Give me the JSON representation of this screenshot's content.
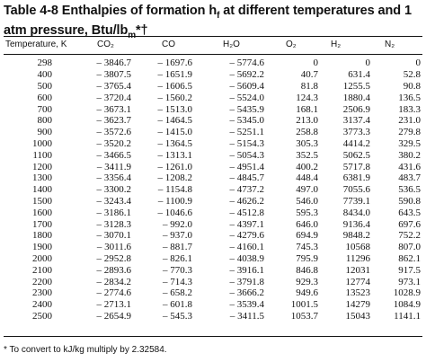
{
  "title_line1": "Table 4-8 Enthalpies of formation h",
  "title_sub": "f",
  "title_line1_rest": " at different temperatures and 1",
  "title_line2": "atm pressure, Btu/lb",
  "title_line2_sub": "m",
  "title_line2_rest": "*†",
  "columns": [
    "Temperature, K",
    "CO₂",
    "CO",
    "H₂O",
    "O₂",
    "H₂",
    "N₂"
  ],
  "rows": [
    [
      "298",
      "– 3846.7",
      "– 1697.6",
      "– 5774.6",
      "0",
      "0",
      "0"
    ],
    [
      "400",
      "– 3807.5",
      "– 1651.9",
      "– 5692.2",
      "40.7",
      "631.4",
      "52.8"
    ],
    [
      "500",
      "– 3765.4",
      "– 1606.5",
      "– 5609.4",
      "81.8",
      "1255.5",
      "90.8"
    ],
    [
      "600",
      "– 3720.4",
      "– 1560.2",
      "– 5524.0",
      "124.3",
      "1880.4",
      "136.5"
    ],
    [
      "700",
      "– 3673.1",
      "– 1513.0",
      "– 5435.9",
      "168.1",
      "2506.9",
      "183.3"
    ],
    [
      "800",
      "– 3623.7",
      "– 1464.5",
      "– 5345.0",
      "213.0",
      "3137.4",
      "231.0"
    ],
    [
      "900",
      "– 3572.6",
      "– 1415.0",
      "– 5251.1",
      "258.8",
      "3773.3",
      "279.8"
    ],
    [
      "1000",
      "– 3520.2",
      "– 1364.5",
      "– 5154.3",
      "305.3",
      "4414.2",
      "329.5"
    ],
    [
      "1100",
      "– 3466.5",
      "– 1313.1",
      "– 5054.3",
      "352.5",
      "5062.5",
      "380.2"
    ],
    [
      "1200",
      "– 3411.9",
      "– 1261.0",
      "– 4951.4",
      "400.2",
      "5717.8",
      "431.6"
    ],
    [
      "1300",
      "– 3356.4",
      "– 1208.2",
      "– 4845.7",
      "448.4",
      "6381.9",
      "483.7"
    ],
    [
      "1400",
      "– 3300.2",
      "– 1154.8",
      "– 4737.2",
      "497.0",
      "7055.6",
      "536.5"
    ],
    [
      "1500",
      "– 3243.4",
      "– 1100.9",
      "– 4626.2",
      "546.0",
      "7739.1",
      "590.8"
    ],
    [
      "1600",
      "– 3186.1",
      "– 1046.6",
      "– 4512.8",
      "595.3",
      "8434.0",
      "643.5"
    ],
    [
      "1700",
      "– 3128.3",
      "– 992.0",
      "– 4397.1",
      "646.0",
      "9136.4",
      "697.6"
    ],
    [
      "1800",
      "– 3070.1",
      "– 937.0",
      "– 4279.6",
      "694.9",
      "9848.2",
      "752.2"
    ],
    [
      "1900",
      "– 3011.6",
      "– 881.7",
      "– 4160.1",
      "745.3",
      "10568",
      "807.0"
    ],
    [
      "2000",
      "– 2952.8",
      "– 826.1",
      "– 4038.9",
      "795.9",
      "11296",
      "862.1"
    ],
    [
      "2100",
      "– 2893.6",
      "– 770.3",
      "– 3916.1",
      "846.8",
      "12031",
      "917.5"
    ],
    [
      "2200",
      "– 2834.2",
      "– 714.3",
      "– 3791.8",
      "929.3",
      "12774",
      "973.1"
    ],
    [
      "2300",
      "– 2774.6",
      "– 658.2",
      "– 3666.2",
      "949.6",
      "13523",
      "1028.9"
    ],
    [
      "2400",
      "– 2713.1",
      "– 601.8",
      "– 3539.4",
      "1001.5",
      "14279",
      "1084.9"
    ],
    [
      "2500",
      "– 2654.9",
      "– 545.3",
      "– 3411.5",
      "1053.7",
      "15043",
      "1141.1"
    ]
  ],
  "footnote": "* To convert to kJ/kg multiply by 2.32584."
}
